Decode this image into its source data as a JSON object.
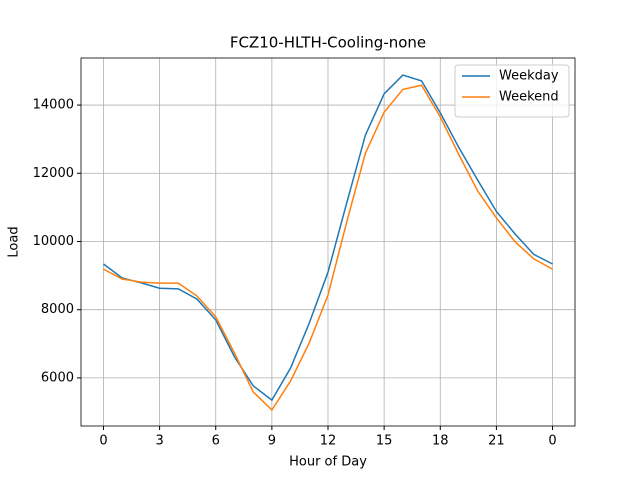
{
  "chart_data": {
    "type": "line",
    "title": "FCZ10-HLTH-Cooling-none",
    "x_label": "Hour of Day",
    "y_label": "Load",
    "x": [
      0,
      1,
      2,
      3,
      4,
      5,
      6,
      7,
      8,
      9,
      10,
      11,
      12,
      13,
      14,
      15,
      16,
      17,
      18,
      19,
      20,
      21,
      22,
      23,
      24
    ],
    "series": [
      {
        "name": "Weekday",
        "color": "#1f77b4",
        "values": [
          9340,
          8930,
          8790,
          8630,
          8610,
          8310,
          7700,
          6620,
          5770,
          5350,
          6290,
          7610,
          9100,
          11130,
          13120,
          14330,
          14880,
          14710,
          13770,
          12750,
          11800,
          10880,
          10220,
          9620,
          9340
        ]
      },
      {
        "name": "Weekend",
        "color": "#ff7f0e",
        "values": [
          9190,
          8900,
          8810,
          8780,
          8780,
          8400,
          7790,
          6730,
          5590,
          5060,
          5910,
          7030,
          8430,
          10570,
          12590,
          13790,
          14460,
          14580,
          13650,
          12540,
          11480,
          10690,
          9990,
          9490,
          9190
        ]
      }
    ],
    "xlim": [
      -1.2,
      25.2
    ],
    "xticks": [
      0,
      3,
      6,
      9,
      12,
      15,
      18,
      21,
      {
        "value": 24,
        "label": "0"
      }
    ],
    "ylim": [
      4590,
      15380
    ],
    "yticks": [
      6000,
      8000,
      10000,
      12000,
      14000
    ],
    "grid": true,
    "legend": "upper right"
  }
}
